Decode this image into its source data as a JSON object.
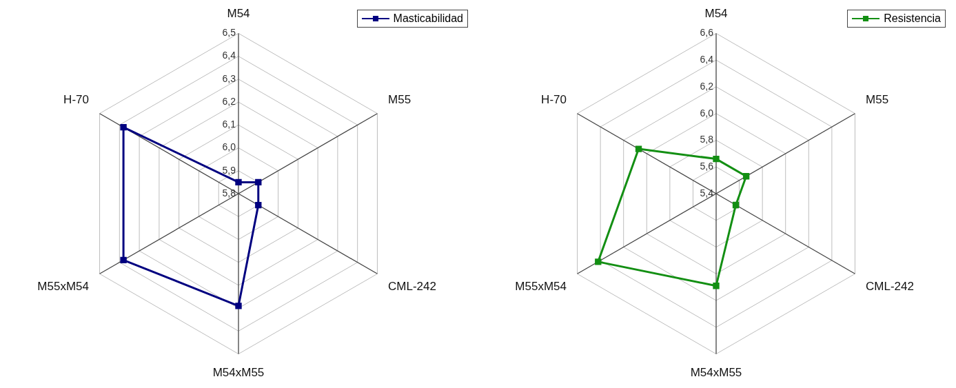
{
  "chart_data": [
    {
      "type": "radar",
      "categories": [
        "M54",
        "M55",
        "CML-242",
        "M54xM55",
        "M55xM54",
        "H-70"
      ],
      "ylim": [
        5.8,
        6.5
      ],
      "yticks": [
        {
          "value": 5.8,
          "label": "5,8"
        },
        {
          "value": 5.9,
          "label": "5,9"
        },
        {
          "value": 6.0,
          "label": "6,0"
        },
        {
          "value": 6.1,
          "label": "6,1"
        },
        {
          "value": 6.2,
          "label": "6,2"
        },
        {
          "value": 6.3,
          "label": "6,3"
        },
        {
          "value": 6.4,
          "label": "6,4"
        },
        {
          "value": 6.5,
          "label": "6,5"
        }
      ],
      "grid": true,
      "legend": "top right",
      "marker": "square",
      "line_style": "solid",
      "series": [
        {
          "name": "Masticabilidad",
          "color": "#000080",
          "values": [
            5.85,
            5.9,
            5.9,
            6.29,
            6.38,
            6.38
          ]
        }
      ]
    },
    {
      "type": "radar",
      "categories": [
        "M54",
        "M55",
        "CML-242",
        "M54xM55",
        "M55xM54",
        "H-70"
      ],
      "ylim": [
        5.4,
        6.6
      ],
      "yticks": [
        {
          "value": 5.4,
          "label": "5,4"
        },
        {
          "value": 5.6,
          "label": "5,6"
        },
        {
          "value": 5.8,
          "label": "5,8"
        },
        {
          "value": 6.0,
          "label": "6,0"
        },
        {
          "value": 6.2,
          "label": "6,2"
        },
        {
          "value": 6.4,
          "label": "6,4"
        },
        {
          "value": 6.6,
          "label": "6,6"
        }
      ],
      "grid": true,
      "legend": "top right",
      "marker": "square",
      "line_style": "solid",
      "series": [
        {
          "name": "Resistencia",
          "color": "#138f13",
          "values": [
            5.66,
            5.66,
            5.57,
            6.09,
            6.42,
            6.07
          ]
        }
      ]
    }
  ]
}
